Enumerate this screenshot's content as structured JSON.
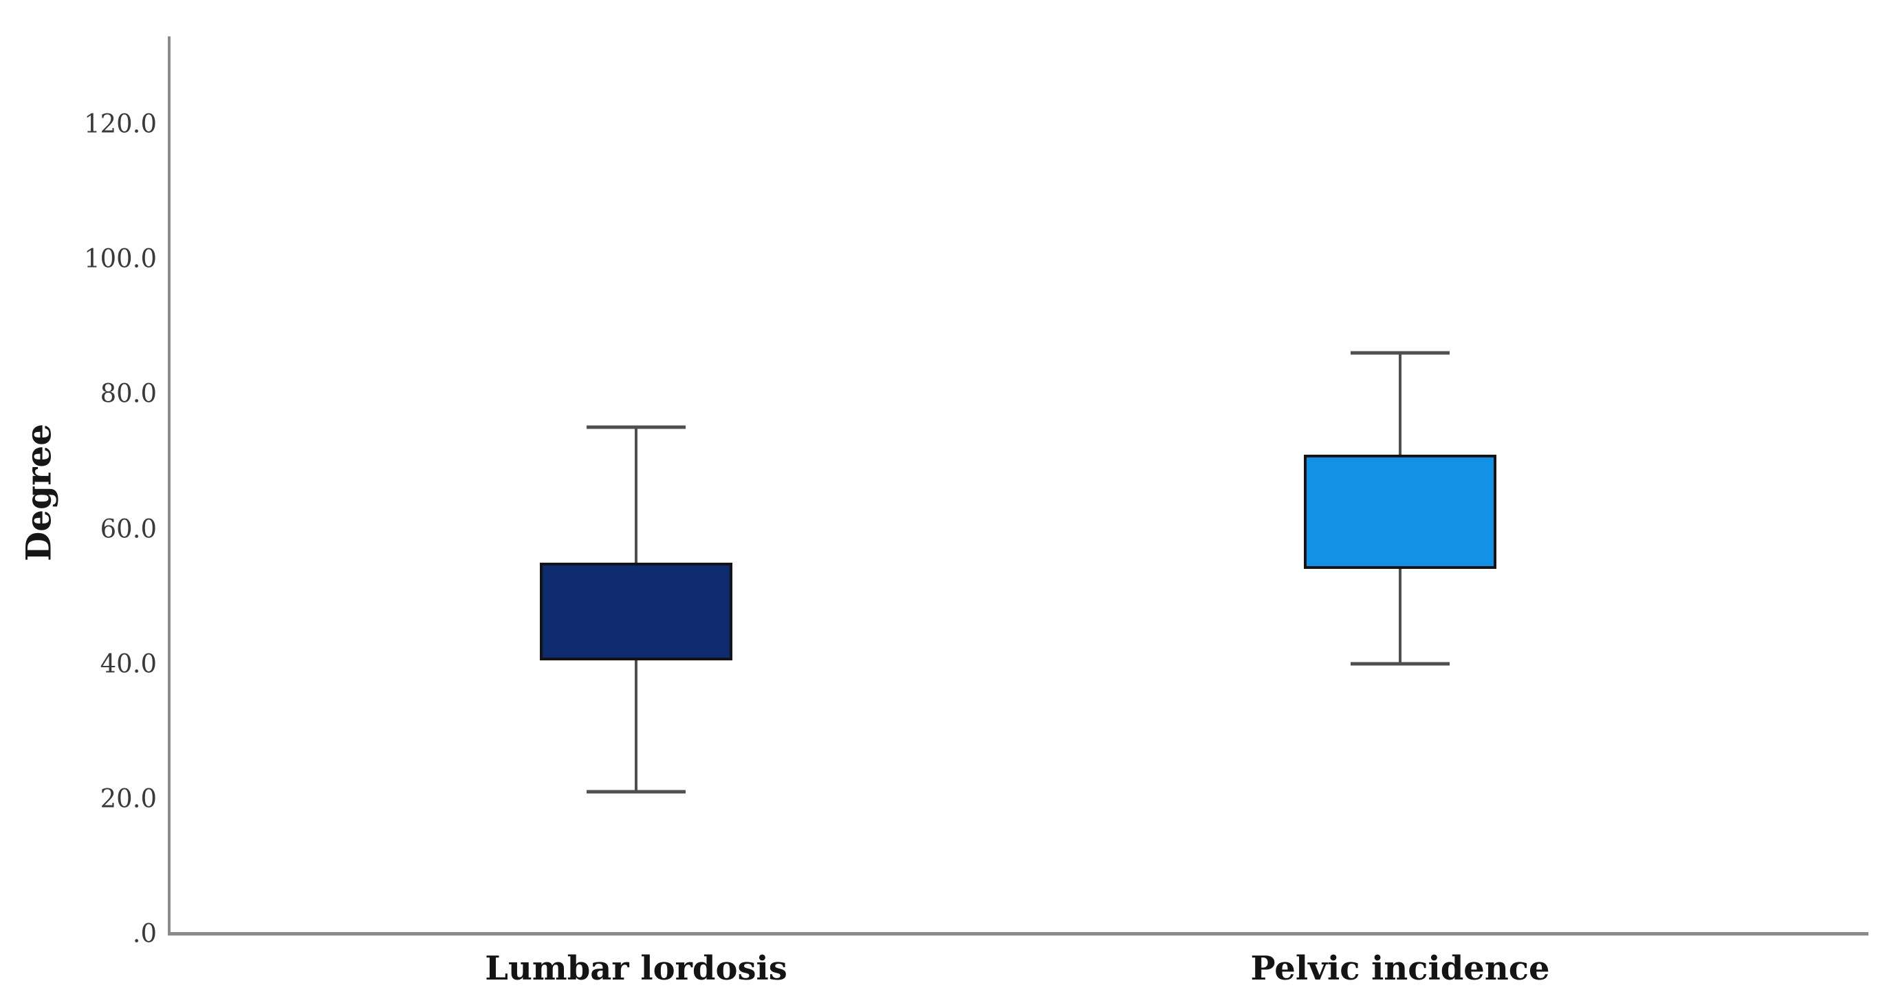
{
  "figure": {
    "background": "#ffffff"
  },
  "chart_data": {
    "type": "boxplot",
    "title": "",
    "ylabel": "Degree",
    "xlabel": "",
    "categories": [
      "Lumbar lordosis",
      "Pelvic incidence"
    ],
    "ylim": [
      0,
      133
    ],
    "grid": false,
    "median_line_visible": false,
    "yticks": [
      {
        "label": "120.0",
        "value": 120
      },
      {
        "label": "100.0",
        "value": 100
      },
      {
        "label": "80.0",
        "value": 80
      },
      {
        "label": "60.0",
        "value": 60
      },
      {
        "label": "40.0",
        "value": 40
      },
      {
        "label": "20.0",
        "value": 20
      },
      {
        "label": ".0",
        "value": 0
      }
    ],
    "series": [
      {
        "name": "Lumbar lordosis",
        "min": 21,
        "q1": 40.5,
        "median": null,
        "q3": 55,
        "max": 75,
        "color": "#0d2b6e"
      },
      {
        "name": "Pelvic incidence",
        "min": 40,
        "q1": 54,
        "median": null,
        "q3": 71,
        "max": 86,
        "color": "#1391e6"
      }
    ],
    "colors": {
      "axis_line": "#8a8a8a",
      "whisker": "#4f4f4f",
      "box_border": "#141414",
      "tick_label": "#3a3a3a",
      "category_label": "#141414"
    }
  }
}
